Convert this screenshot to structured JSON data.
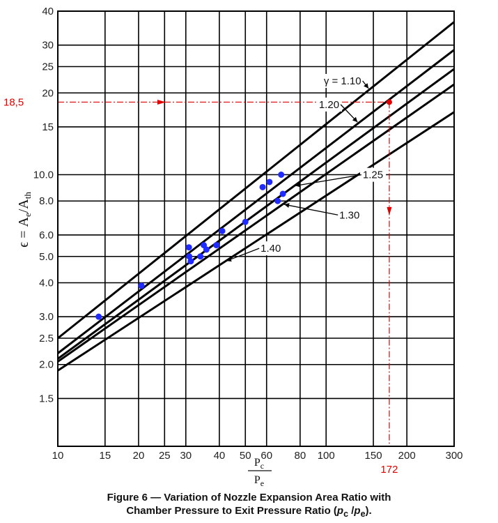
{
  "chart_data": {
    "type": "line",
    "x_scale": "log",
    "y_scale": "log",
    "xlim": [
      10,
      300
    ],
    "ylim": [
      1,
      40
    ],
    "grid": true,
    "x_ticks": [
      10,
      15,
      20,
      25,
      30,
      40,
      50,
      60,
      80,
      100,
      150,
      200,
      300
    ],
    "x_tick_labels": [
      "10",
      "15",
      "20",
      "25",
      "30",
      "40",
      "50",
      "60",
      "80",
      "100",
      "150",
      "200",
      "300"
    ],
    "y_ticks": [
      1.5,
      2.0,
      2.5,
      3.0,
      4.0,
      5.0,
      6.0,
      8.0,
      10.0,
      15,
      20,
      25,
      30,
      40
    ],
    "y_tick_labels": [
      "1.5",
      "2.0",
      "2.5",
      "3.0",
      "4.0",
      "5.0",
      "6.0",
      "8.0",
      "10.0",
      "15",
      "20",
      "25",
      "30",
      "40"
    ],
    "ylabel": {
      "eps": "ϵ",
      "eq": " = A",
      "sub1": "e",
      "slash": "/A",
      "sub2": "th"
    },
    "xlabel": {
      "numerator": "P",
      "numerator_sub": "c",
      "denominator": "P",
      "denominator_sub": "e"
    },
    "series": [
      {
        "name": "γ = 1.10",
        "x": [
          10,
          300
        ],
        "y": [
          2.5,
          36.5
        ]
      },
      {
        "name": "1.20",
        "x": [
          10,
          300
        ],
        "y": [
          2.2,
          28.8
        ]
      },
      {
        "name": "1.25",
        "x": [
          10,
          300
        ],
        "y": [
          2.1,
          24.5
        ]
      },
      {
        "name": "1.30",
        "x": [
          10,
          300
        ],
        "y": [
          2.05,
          21.5
        ]
      },
      {
        "name": "1.40",
        "x": [
          10,
          300
        ],
        "y": [
          1.9,
          17.0
        ]
      }
    ],
    "curve_labels": [
      {
        "text": "γ = 1.10",
        "series": 0,
        "at_x": 145,
        "label_x": 98,
        "label_y": 21.5
      },
      {
        "text": "1.20",
        "series": 1,
        "at_x": 132,
        "label_x": 94,
        "label_y": 17.6
      },
      {
        "text": "1.25",
        "series": 2,
        "at_x": 76,
        "label_x": 137,
        "label_y": 9.7
      },
      {
        "text": "1.30",
        "series": 3,
        "at_x": 69,
        "label_x": 112,
        "label_y": 6.9
      },
      {
        "text": "1.40",
        "series": 4,
        "at_x": 42,
        "label_x": 57,
        "label_y": 5.2
      }
    ],
    "scatter": {
      "color": "#1f2bff",
      "points": [
        {
          "x": 14.2,
          "y": 3.0
        },
        {
          "x": 20.5,
          "y": 3.9
        },
        {
          "x": 30.8,
          "y": 5.4
        },
        {
          "x": 30.9,
          "y": 5.0
        },
        {
          "x": 31.3,
          "y": 4.8
        },
        {
          "x": 34.0,
          "y": 5.0
        },
        {
          "x": 35.0,
          "y": 5.5
        },
        {
          "x": 35.8,
          "y": 5.3
        },
        {
          "x": 39.0,
          "y": 5.5
        },
        {
          "x": 41.0,
          "y": 6.2
        },
        {
          "x": 50.0,
          "y": 6.7
        },
        {
          "x": 58.0,
          "y": 9.0
        },
        {
          "x": 61.5,
          "y": 9.4
        },
        {
          "x": 66.0,
          "y": 8.0
        },
        {
          "x": 68.0,
          "y": 10.0
        },
        {
          "x": 69.0,
          "y": 8.5
        }
      ]
    },
    "annotation": {
      "color": "#e00000",
      "x": 172,
      "y": 18.5,
      "x_label": "172",
      "y_label": "18,5"
    },
    "caption": {
      "line1": "Figure 6 — Variation of Nozzle Expansion Area Ratio with",
      "line2_prefix": "Chamber Pressure to Exit Pressure Ratio (",
      "line2_pc": "p",
      "line2_pc_sub": "c",
      "line2_mid": " /",
      "line2_pe": "p",
      "line2_pe_sub": "e",
      "line2_suffix": ")."
    }
  }
}
